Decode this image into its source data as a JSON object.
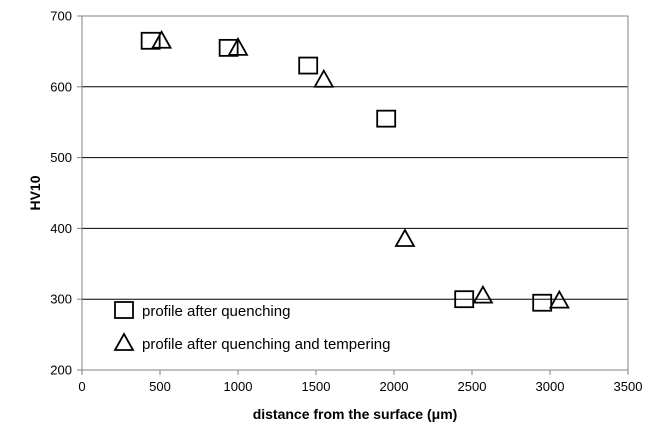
{
  "chart_data": {
    "type": "scatter",
    "title": "",
    "xlabel": "distance from the surface (μm)",
    "ylabel": "HV10",
    "xlim": [
      0,
      3500
    ],
    "ylim": [
      200,
      700
    ],
    "xticks": [
      0,
      500,
      1000,
      1500,
      2000,
      2500,
      3000,
      3500
    ],
    "yticks": [
      200,
      300,
      400,
      500,
      600,
      700
    ],
    "grid": "horizontal",
    "legend_position": "bottom-left",
    "series": [
      {
        "name": "profile after quenching",
        "marker": "square",
        "color": "#000000",
        "x": [
          440,
          940,
          1450,
          1950,
          2450,
          2950
        ],
        "y": [
          665,
          655,
          630,
          555,
          300,
          295
        ]
      },
      {
        "name": "profile after quenching and tempering",
        "marker": "triangle",
        "color": "#000000",
        "x": [
          510,
          1000,
          1550,
          2070,
          2570,
          3060
        ],
        "y": [
          665,
          655,
          610,
          385,
          305,
          298
        ]
      }
    ]
  }
}
